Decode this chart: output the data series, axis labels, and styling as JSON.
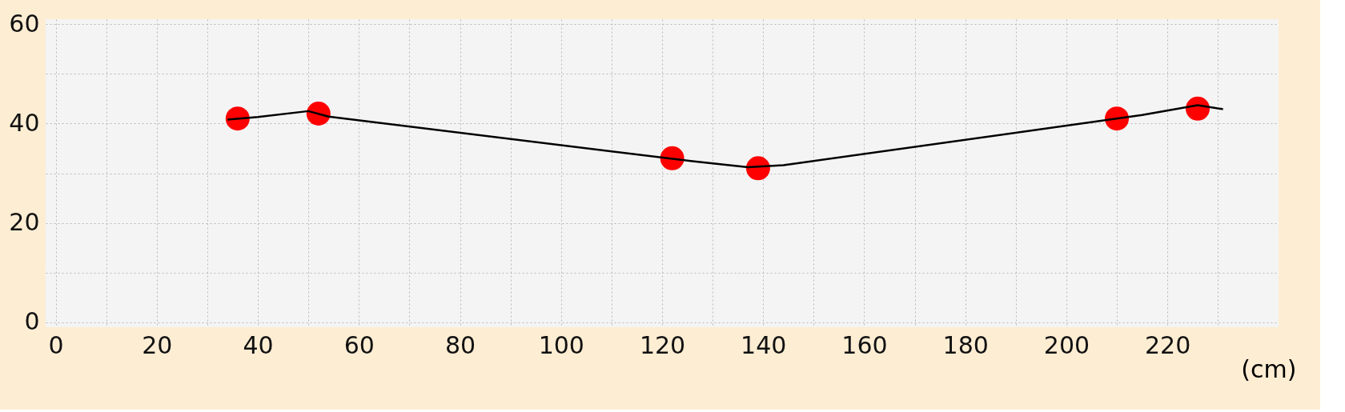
{
  "chart_data": {
    "type": "line",
    "xlabel": "(cm)",
    "xlim": [
      -2,
      242
    ],
    "ylim": [
      -1,
      61
    ],
    "xticks": [
      0,
      {
        "value": 10,
        "label": null
      },
      20,
      {
        "value": 30,
        "label": null
      },
      40,
      {
        "value": 50,
        "label": null
      },
      60,
      {
        "value": 70,
        "label": null
      },
      80,
      {
        "value": 90,
        "label": null
      },
      100,
      {
        "value": 110,
        "label": null
      },
      120,
      {
        "value": 130,
        "label": null
      },
      140,
      {
        "value": 150,
        "label": null
      },
      160,
      {
        "value": 170,
        "label": null
      },
      180,
      {
        "value": 190,
        "label": null
      },
      200,
      {
        "value": 210,
        "label": null
      },
      220,
      {
        "value": 230,
        "label": null
      }
    ],
    "yticks": [
      0,
      {
        "value": 10,
        "label": null
      },
      20,
      {
        "value": 30,
        "label": null
      },
      40,
      {
        "value": 50,
        "label": null
      },
      60
    ],
    "grid": true,
    "series": [
      {
        "type": "scatter",
        "color": "#ff0000",
        "x": [
          36,
          52,
          122,
          139,
          210,
          226
        ],
        "values": [
          41,
          42,
          33,
          31,
          41,
          43
        ]
      },
      {
        "color": "#000000",
        "x": [
          34,
          40,
          50,
          54,
          126,
          137,
          144,
          215,
          226,
          231
        ],
        "values": [
          40.8,
          41.3,
          42.5,
          41.4,
          32.4,
          31.2,
          31.6,
          41.7,
          43.7,
          42.9
        ]
      }
    ]
  }
}
